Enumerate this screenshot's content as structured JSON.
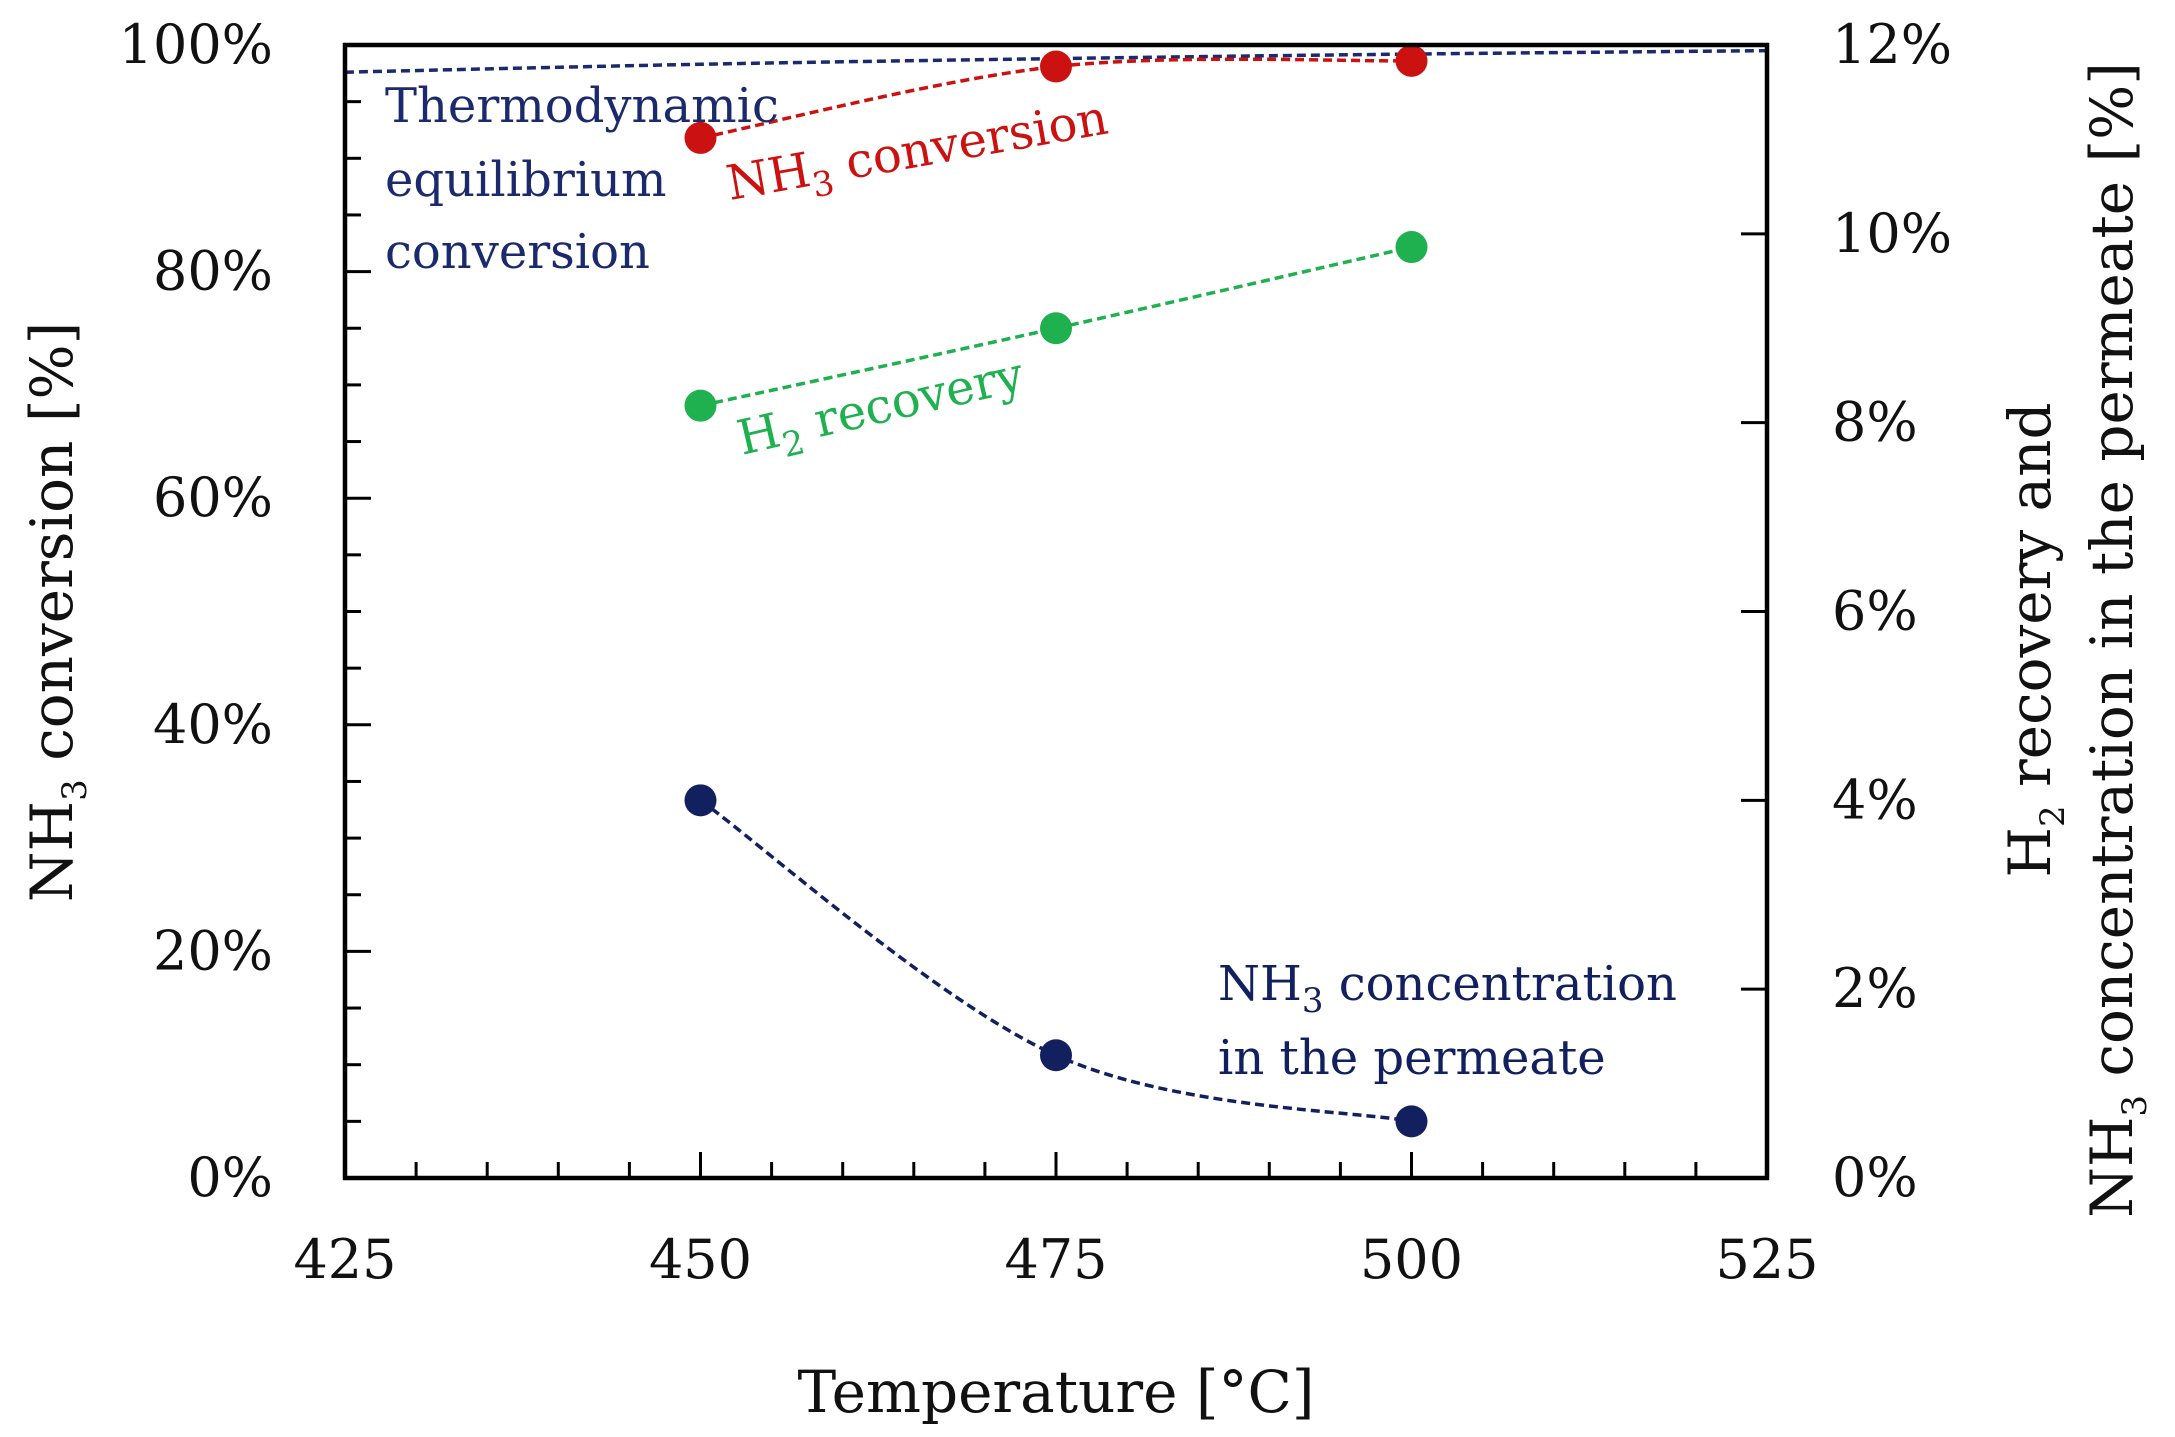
{
  "chart_data": {
    "type": "line",
    "xlabel": "Temperature [°C]",
    "ylabel_left": {
      "main": "NH",
      "sub": "3",
      "rest": " conversion [%]"
    },
    "ylabel_right": {
      "line1": {
        "main": "H",
        "sub": "2",
        "rest": " recovery and"
      },
      "line2": {
        "main": "NH",
        "sub": "3",
        "rest": " concentration in the permeate [%]"
      }
    },
    "xlim": [
      425,
      525
    ],
    "x_ticks": [
      425,
      450,
      475,
      500,
      525
    ],
    "x_tick_labels": [
      "425",
      "450",
      "475",
      "500",
      "525"
    ],
    "ylim_left": [
      0,
      100
    ],
    "y_left_ticks": [
      0,
      20,
      40,
      60,
      80,
      100
    ],
    "y_left_tick_labels": [
      "0%",
      "20%",
      "40%",
      "60%",
      "80%",
      "100%"
    ],
    "ylim_right": [
      0,
      12
    ],
    "y_right_ticks": [
      0,
      2,
      4,
      6,
      8,
      10,
      12
    ],
    "y_right_tick_labels": [
      "0%",
      "2%",
      "4%",
      "6%",
      "8%",
      "10%",
      "12%"
    ],
    "grid": false,
    "series": [
      {
        "axis": "left",
        "color": "#1a2a6c",
        "style": "dashed",
        "markers": false,
        "x": [
          425,
          450,
          475,
          500,
          525
        ],
        "y": [
          97.6,
          98.3,
          98.8,
          99.2,
          99.5
        ]
      },
      {
        "axis": "left",
        "color": "#cc1111",
        "style": "dashed",
        "markers": true,
        "x": [
          450,
          475,
          500
        ],
        "y": [
          91.8,
          98.1,
          98.6
        ]
      },
      {
        "axis": "right",
        "color": "#1fb050",
        "style": "dashed",
        "markers": true,
        "x": [
          450,
          475,
          500
        ],
        "y": [
          8.18,
          9.0,
          9.86
        ]
      },
      {
        "axis": "right",
        "color": "#132060",
        "style": "dashed",
        "markers": true,
        "x": [
          450,
          475,
          500
        ],
        "y": [
          4.0,
          1.3,
          0.6
        ]
      }
    ],
    "annotations": [
      {
        "series": 0,
        "lines": [
          "Thermodynamic",
          "equilibrium",
          "conversion"
        ],
        "color": "#1a2a6c"
      },
      {
        "series": 1,
        "main": "NH",
        "sub": "3",
        "rest": " conversion",
        "color": "#cc1111"
      },
      {
        "series": 2,
        "main": "H",
        "sub": "2",
        "rest": " recovery",
        "color": "#1fb050"
      },
      {
        "series": 3,
        "line1": {
          "main": "NH",
          "sub": "3",
          "rest": " concentration"
        },
        "line2": "in the permeate",
        "color": "#132060"
      }
    ]
  }
}
